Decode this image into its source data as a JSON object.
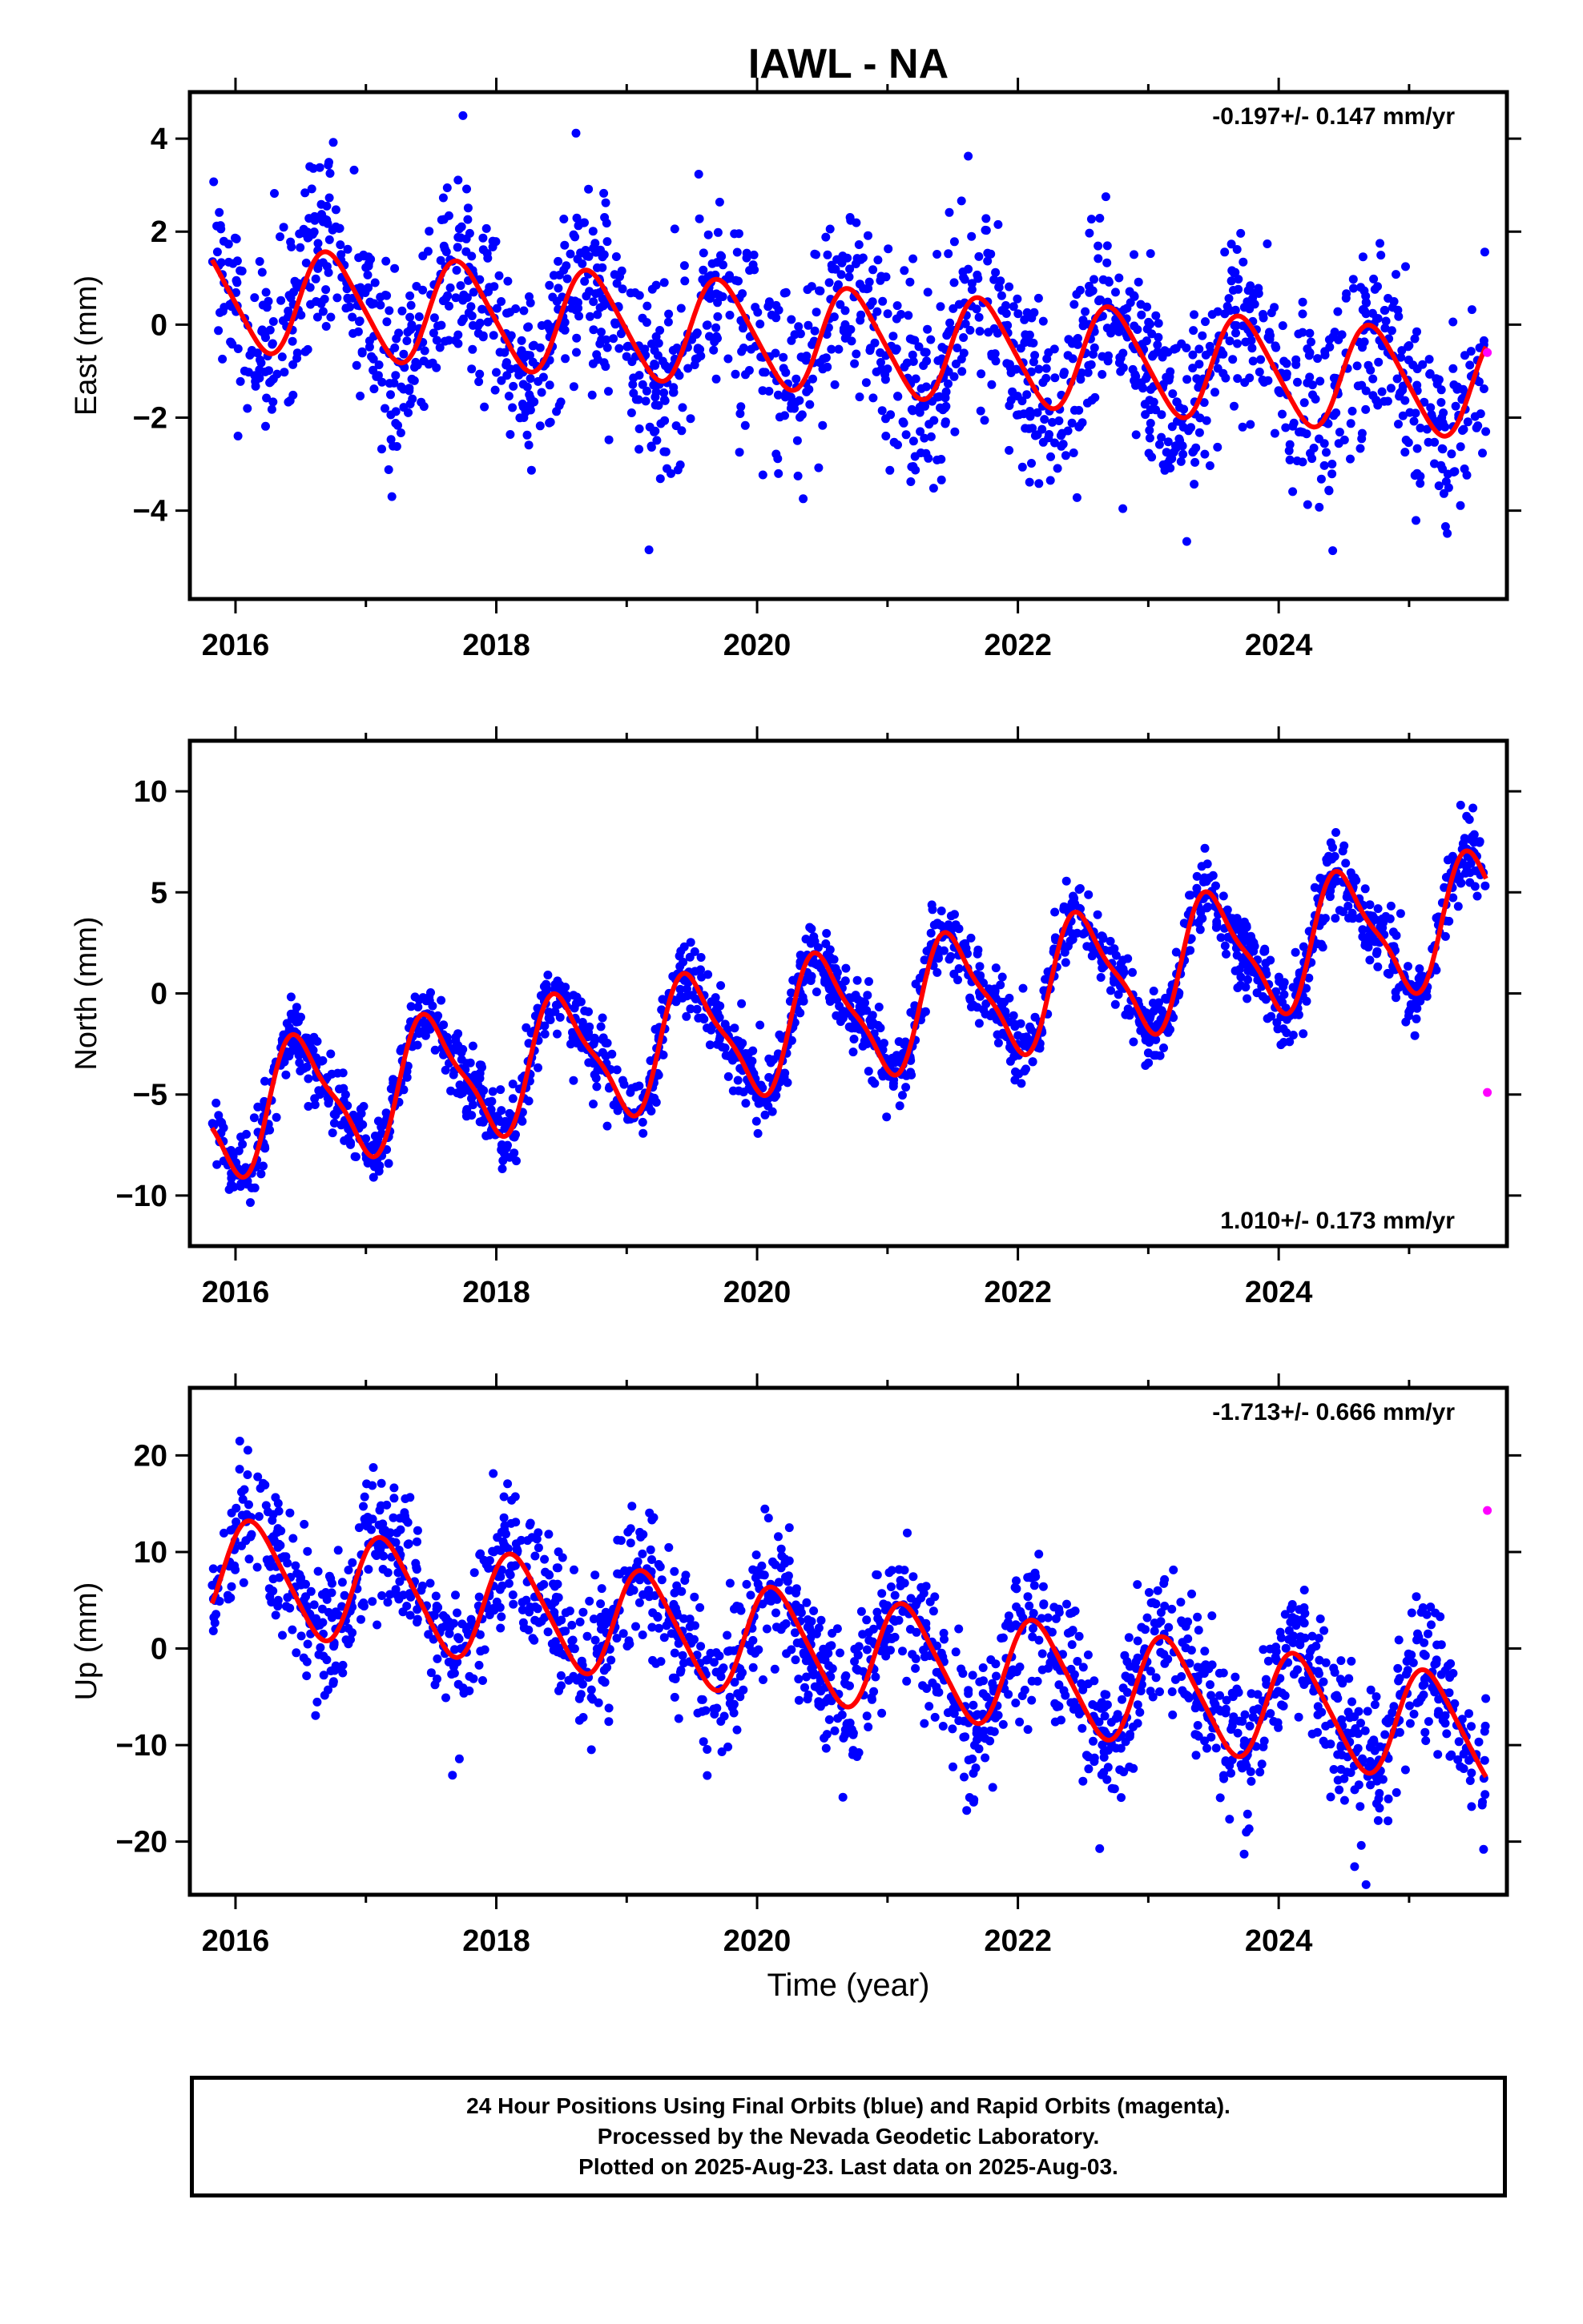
{
  "title": "IAWL - NA",
  "xlabel": "Time (year)",
  "colors": {
    "final": "#0000ff",
    "rapid": "#ff00ff",
    "model": "#ff0000",
    "frame": "#000000"
  },
  "chart_data": [
    {
      "type": "scatter",
      "ylabel": "East (mm)",
      "rate_label": "-0.197+/- 0.147 mm/yr",
      "rate": -0.197,
      "xlim": [
        2015.65,
        2025.75
      ],
      "ylim": [
        -5.9,
        5.0
      ],
      "xticks": [
        2016,
        2018,
        2020,
        2022,
        2024
      ],
      "xtick_labels": [
        "2016",
        "2018",
        "2020",
        "2022",
        "2024"
      ],
      "yticks": [
        -4,
        -2,
        0,
        2,
        4
      ],
      "ytick_labels": [
        "−4",
        "−2",
        "0",
        "2",
        "4"
      ],
      "x_range": [
        2015.82,
        2025.59
      ],
      "seasonal": {
        "offset": 0.6,
        "amp": 1.1,
        "phase": 0.48,
        "amp2": 0.15
      },
      "scatter_sd": 1.0,
      "series": [
        {
          "name": "Final Orbits",
          "color": "#0000ff"
        },
        {
          "name": "Rapid Orbits",
          "color": "#ff00ff",
          "points": [
            [
              2025.6,
              -0.6
            ]
          ]
        }
      ]
    },
    {
      "type": "scatter",
      "ylabel": "North (mm)",
      "rate_label": "1.010+/- 0.173 mm/yr",
      "rate": 1.01,
      "xlim": [
        2015.65,
        2025.75
      ],
      "ylim": [
        -12.5,
        12.5
      ],
      "xticks": [
        2016,
        2018,
        2020,
        2022,
        2024
      ],
      "xtick_labels": [
        "2016",
        "2018",
        "2020",
        "2022",
        "2024"
      ],
      "yticks": [
        -10,
        -5,
        0,
        5,
        10
      ],
      "ytick_labels": [
        "−10",
        "−5",
        "0",
        "5",
        "10"
      ],
      "x_range": [
        2015.82,
        2025.59
      ],
      "seasonal": {
        "offset": -6.0,
        "amp": 3.0,
        "phase": 0.25,
        "amp2": 0.8
      },
      "scatter_sd": 0.9,
      "series": [
        {
          "name": "Final Orbits",
          "color": "#0000ff"
        },
        {
          "name": "Rapid Orbits",
          "color": "#ff00ff",
          "points": [
            [
              2025.6,
              -4.9
            ]
          ]
        }
      ]
    },
    {
      "type": "scatter",
      "ylabel": "Up (mm)",
      "rate_label": "-1.713+/- 0.666 mm/yr",
      "rate": -1.713,
      "xlim": [
        2015.65,
        2025.75
      ],
      "ylim": [
        -25.5,
        27.0
      ],
      "xticks": [
        2016,
        2018,
        2020,
        2022,
        2024
      ],
      "xtick_labels": [
        "2016",
        "2018",
        "2020",
        "2022",
        "2024"
      ],
      "yticks": [
        -20,
        -10,
        0,
        10,
        20
      ],
      "ytick_labels": [
        "−20",
        "−10",
        "0",
        "10",
        "20"
      ],
      "x_range": [
        2015.82,
        2025.59
      ],
      "seasonal": {
        "offset": 8.0,
        "amp": 5.5,
        "phase": 0.9,
        "amp2": 0.8
      },
      "scatter_sd": 3.6,
      "series": [
        {
          "name": "Final Orbits",
          "color": "#0000ff"
        },
        {
          "name": "Rapid Orbits",
          "color": "#ff00ff",
          "points": [
            [
              2025.6,
              14.3
            ]
          ]
        }
      ]
    }
  ],
  "footer": {
    "line1": "24 Hour Positions Using Final Orbits (blue) and Rapid Orbits (magenta).",
    "line2": "Processed by the Nevada Geodetic Laboratory.",
    "line3": "Plotted on 2025-Aug-23. Last data on 2025-Aug-03."
  }
}
